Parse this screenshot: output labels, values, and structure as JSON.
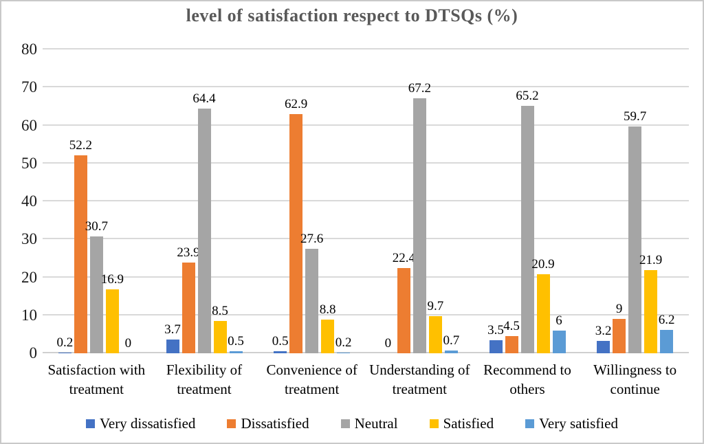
{
  "chart_data": {
    "type": "bar",
    "title": "level of satisfaction respect to  DTSQs (%)",
    "categories": [
      "Satisfaction with treatment",
      "Flexibility of treatment",
      "Convenience of treatment",
      "Understanding of treatment",
      "Recommend to others",
      "Willingness to continue"
    ],
    "series": [
      {
        "name": "Very dissatisfied",
        "color": "#4472C4",
        "values": [
          0.2,
          3.7,
          0.5,
          0,
          3.5,
          3.2
        ]
      },
      {
        "name": "Dissatisfied",
        "color": "#ED7D31",
        "values": [
          52.2,
          23.9,
          62.9,
          22.4,
          4.5,
          9
        ]
      },
      {
        "name": "Neutral",
        "color": "#A5A5A5",
        "values": [
          30.7,
          64.4,
          27.6,
          67.2,
          65.2,
          59.7
        ]
      },
      {
        "name": "Satisfied",
        "color": "#FFC000",
        "values": [
          16.9,
          8.5,
          8.8,
          9.7,
          20.9,
          21.9
        ]
      },
      {
        "name": "Very satisfied",
        "color": "#5B9BD5",
        "values": [
          0,
          0.5,
          0.2,
          0.7,
          6,
          6.2
        ]
      }
    ],
    "ylim": [
      0,
      80
    ],
    "yticks": [
      0,
      10,
      20,
      30,
      40,
      50,
      60,
      70,
      80
    ],
    "grid": true,
    "legend_position": "bottom",
    "data_labels": true,
    "xlabel": "",
    "ylabel": ""
  },
  "colors": {
    "gridline": "#D9D9D9",
    "baseline": "#CFCFCF",
    "title": "#595959",
    "text": "#000000",
    "border": "#C9C9C9",
    "background": "#FFFFFF"
  }
}
